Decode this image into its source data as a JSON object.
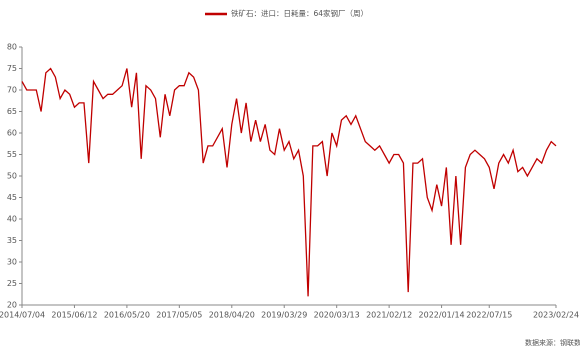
{
  "chart_data": {
    "type": "line",
    "series": [
      {
        "name": "铁矿石：进口：日耗量：64家钢厂（周）",
        "color": "#c00000",
        "values": [
          72,
          70,
          70,
          70,
          65,
          74,
          75,
          73,
          68,
          70,
          69,
          66,
          67,
          67,
          53,
          72,
          70,
          68,
          69,
          69,
          70,
          71,
          75,
          66,
          74,
          54,
          71,
          70,
          68,
          59,
          69,
          64,
          70,
          71,
          71,
          74,
          73,
          70,
          53,
          57,
          57,
          59,
          61,
          52,
          62,
          68,
          60,
          67,
          58,
          63,
          58,
          62,
          56,
          55,
          61,
          56,
          58,
          54,
          56,
          50,
          22,
          57,
          57,
          58,
          50,
          60,
          57,
          63,
          64,
          62,
          64,
          61,
          58,
          57,
          56,
          57,
          55,
          53,
          55,
          55,
          53,
          23,
          53,
          53,
          54,
          45,
          42,
          48,
          43,
          52,
          34,
          50,
          34,
          52,
          55,
          56,
          55,
          54,
          52,
          47,
          53,
          55,
          53,
          56,
          51,
          52,
          50,
          52,
          54,
          53,
          56,
          58,
          57
        ]
      }
    ],
    "categories": [
      "2014/07/04",
      null,
      null,
      null,
      null,
      null,
      null,
      null,
      null,
      null,
      null,
      "2015/06/12",
      null,
      null,
      null,
      null,
      null,
      null,
      null,
      null,
      null,
      null,
      "2016/05/20",
      null,
      null,
      null,
      null,
      null,
      null,
      null,
      null,
      null,
      null,
      "2017/05/05",
      null,
      null,
      null,
      null,
      null,
      null,
      null,
      null,
      null,
      null,
      "2018/04/20",
      null,
      null,
      null,
      null,
      null,
      null,
      null,
      null,
      null,
      null,
      "2019/03/29",
      null,
      null,
      null,
      null,
      null,
      null,
      null,
      null,
      null,
      null,
      "2020/03/13",
      null,
      null,
      null,
      null,
      null,
      null,
      null,
      null,
      null,
      null,
      "2021/02/12",
      null,
      null,
      null,
      null,
      null,
      null,
      null,
      null,
      null,
      null,
      "2022/01/14",
      null,
      null,
      null,
      null,
      null,
      null,
      null,
      null,
      null,
      "2022/07/15",
      null,
      null,
      null,
      null,
      null,
      null,
      null,
      null,
      null,
      null,
      null,
      null,
      null,
      "2023/02/24"
    ],
    "ylim": [
      20,
      80
    ],
    "yticks": [
      20,
      25,
      30,
      35,
      40,
      45,
      50,
      55,
      60,
      65,
      70,
      75,
      80
    ],
    "source": "数据来源：钢联数据",
    "legend": "top"
  }
}
